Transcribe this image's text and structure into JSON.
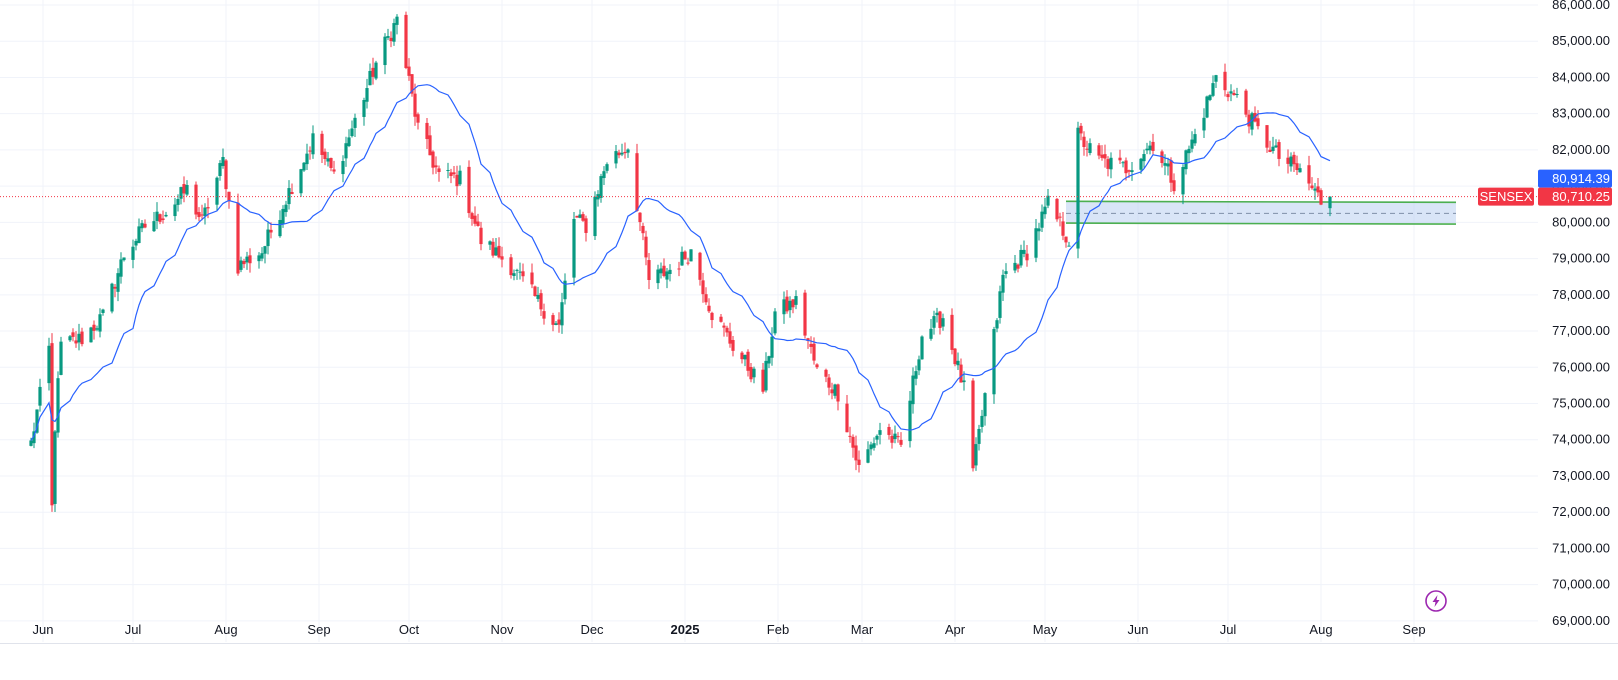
{
  "chart_data": {
    "type": "candlestick",
    "symbol_label": "SENSEX",
    "price_axis": {
      "ylim": [
        68500,
        86000
      ],
      "ticks": [
        69000,
        70000,
        71000,
        72000,
        73000,
        74000,
        75000,
        76000,
        77000,
        78000,
        79000,
        80000,
        81000,
        82000,
        83000,
        84000,
        85000,
        86000
      ],
      "tick_labels": [
        "69,000.00",
        "70,000.00",
        "71,000.00",
        "72,000.00",
        "73,000.00",
        "74,000.00",
        "75,000.00",
        "76,000.00",
        "77,000.00",
        "78,000.00",
        "79,000.00",
        "80,000.00",
        "81,000.00",
        "82,000.00",
        "83,000.00",
        "84,000.00",
        "85,000.00",
        "86,000.00"
      ]
    },
    "time_axis": {
      "labels": [
        {
          "date": "2024-06-01",
          "text": "Jun"
        },
        {
          "date": "2024-07-01",
          "text": "Jul"
        },
        {
          "date": "2024-08-01",
          "text": "Aug"
        },
        {
          "date": "2024-09-01",
          "text": "Sep"
        },
        {
          "date": "2024-10-01",
          "text": "Oct"
        },
        {
          "date": "2024-11-01",
          "text": "Nov"
        },
        {
          "date": "2024-12-01",
          "text": "Dec"
        },
        {
          "date": "2025-01-01",
          "text": "2025",
          "bold": true
        },
        {
          "date": "2025-02-01",
          "text": "Feb"
        },
        {
          "date": "2025-03-01",
          "text": "Mar"
        },
        {
          "date": "2025-04-01",
          "text": "Apr"
        },
        {
          "date": "2025-05-01",
          "text": "May"
        },
        {
          "date": "2025-06-01",
          "text": "Jun"
        },
        {
          "date": "2025-07-01",
          "text": "Jul"
        },
        {
          "date": "2025-08-01",
          "text": "Aug"
        },
        {
          "date": "2025-09-01",
          "text": "Sep"
        }
      ]
    },
    "price_waypoints": [
      [
        "2024-05-28",
        73900
      ],
      [
        "2024-06-03",
        76500
      ],
      [
        "2024-06-04",
        72100
      ],
      [
        "2024-06-05",
        74400
      ],
      [
        "2024-06-07",
        76600
      ],
      [
        "2024-06-14",
        76800
      ],
      [
        "2024-06-21",
        77400
      ],
      [
        "2024-06-28",
        79100
      ],
      [
        "2024-07-05",
        79900
      ],
      [
        "2024-07-12",
        80300
      ],
      [
        "2024-07-19",
        80900
      ],
      [
        "2024-07-24",
        80000
      ],
      [
        "2024-07-31",
        81700
      ],
      [
        "2024-08-05",
        78800
      ],
      [
        "2024-08-13",
        79200
      ],
      [
        "2024-08-20",
        80500
      ],
      [
        "2024-08-30",
        82300
      ],
      [
        "2024-09-06",
        81300
      ],
      [
        "2024-09-13",
        82800
      ],
      [
        "2024-09-20",
        84400
      ],
      [
        "2024-09-27",
        85600
      ],
      [
        "2024-10-04",
        82600
      ],
      [
        "2024-10-11",
        81300
      ],
      [
        "2024-10-18",
        81200
      ],
      [
        "2024-10-25",
        79500
      ],
      [
        "2024-11-04",
        78800
      ],
      [
        "2024-11-14",
        77700
      ],
      [
        "2024-11-20",
        77100
      ],
      [
        "2024-11-25",
        80100
      ],
      [
        "2024-11-29",
        79900
      ],
      [
        "2024-12-06",
        81700
      ],
      [
        "2024-12-13",
        82100
      ],
      [
        "2024-12-20",
        78400
      ],
      [
        "2024-12-27",
        78700
      ],
      [
        "2025-01-03",
        79200
      ],
      [
        "2025-01-10",
        77500
      ],
      [
        "2025-01-17",
        76600
      ],
      [
        "2025-01-27",
        75400
      ],
      [
        "2025-01-31",
        77500
      ],
      [
        "2025-02-07",
        77800
      ],
      [
        "2025-02-14",
        75900
      ],
      [
        "2025-02-21",
        75300
      ],
      [
        "2025-02-28",
        73200
      ],
      [
        "2025-03-07",
        74300
      ],
      [
        "2025-03-14",
        73800
      ],
      [
        "2025-03-21",
        76900
      ],
      [
        "2025-03-28",
        77400
      ],
      [
        "2025-04-04",
        75400
      ],
      [
        "2025-04-07",
        73100
      ],
      [
        "2025-04-11",
        75200
      ],
      [
        "2025-04-17",
        78500
      ],
      [
        "2025-04-25",
        79200
      ],
      [
        "2025-05-02",
        80500
      ],
      [
        "2025-05-09",
        79500
      ],
      [
        "2025-05-12",
        82400
      ],
      [
        "2025-05-19",
        81700
      ],
      [
        "2025-05-28",
        81500
      ],
      [
        "2025-06-06",
        82200
      ],
      [
        "2025-06-13",
        81100
      ],
      [
        "2025-06-20",
        82400
      ],
      [
        "2025-06-27",
        84000
      ],
      [
        "2025-07-04",
        83400
      ],
      [
        "2025-07-11",
        82500
      ],
      [
        "2025-07-18",
        81800
      ],
      [
        "2025-07-25",
        81400
      ],
      [
        "2025-08-01",
        80600
      ],
      [
        "2025-08-04",
        80710
      ]
    ],
    "moving_average": {
      "period": 20,
      "color": "#2962ff"
    },
    "markers": {
      "last_close": {
        "value": 80710.25,
        "label": "80,710.25",
        "color": "#f23645"
      },
      "ma_value": {
        "value": 80914.39,
        "label": "80,914.39",
        "color": "#2962ff"
      }
    },
    "zone": {
      "start": "2025-05-08",
      "end": "2025-09-15",
      "top": 80580,
      "bottom": 79980,
      "mid": 80250,
      "border_color": "#4caf50",
      "fill_color": "#b9d0f0"
    },
    "colors": {
      "up": "#089981",
      "down": "#f23645",
      "grid": "#f0f3fa",
      "axis_text": "#131722"
    },
    "grid": true
  }
}
